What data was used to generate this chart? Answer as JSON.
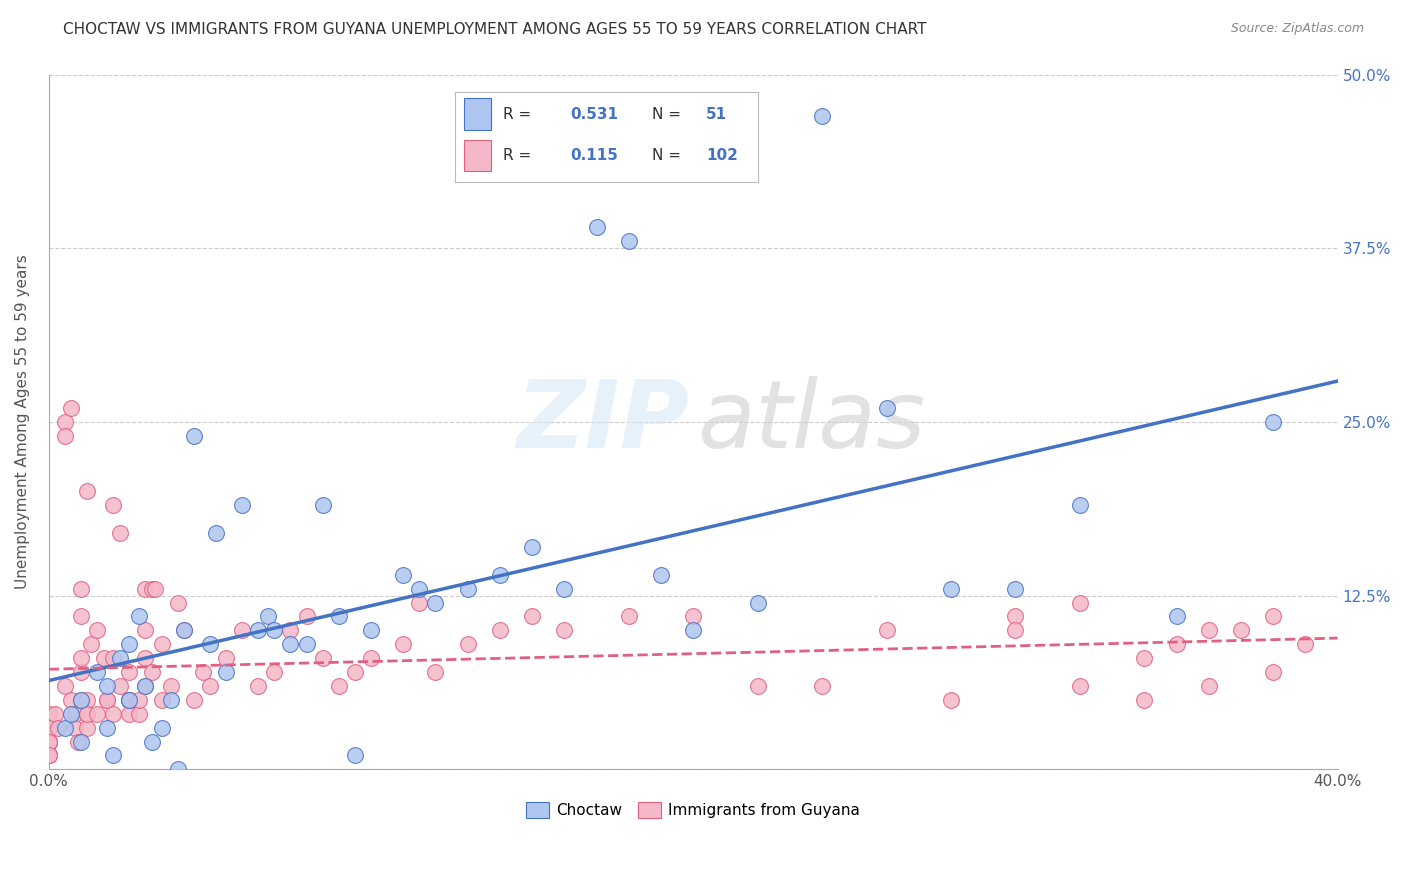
{
  "title": "CHOCTAW VS IMMIGRANTS FROM GUYANA UNEMPLOYMENT AMONG AGES 55 TO 59 YEARS CORRELATION CHART",
  "source": "Source: ZipAtlas.com",
  "ylabel": "Unemployment Among Ages 55 to 59 years",
  "xlim": [
    0.0,
    0.4
  ],
  "ylim": [
    0.0,
    0.5
  ],
  "yticks": [
    0.0,
    0.125,
    0.25,
    0.375,
    0.5
  ],
  "yticklabels_right": [
    "",
    "12.5%",
    "25.0%",
    "37.5%",
    "50.0%"
  ],
  "grid_color": "#cccccc",
  "background_color": "#ffffff",
  "choctaw_color": "#aec6f0",
  "guyana_color": "#f4b8c8",
  "choctaw_line_color": "#4472c4",
  "guyana_line_color": "#e06080",
  "choctaw_R": 0.531,
  "choctaw_N": 51,
  "guyana_R": 0.115,
  "guyana_N": 102,
  "choctaw_x": [
    0.005,
    0.007,
    0.01,
    0.01,
    0.015,
    0.018,
    0.018,
    0.02,
    0.022,
    0.025,
    0.025,
    0.028,
    0.03,
    0.032,
    0.035,
    0.038,
    0.04,
    0.042,
    0.045,
    0.05,
    0.052,
    0.055,
    0.06,
    0.065,
    0.068,
    0.07,
    0.075,
    0.08,
    0.085,
    0.09,
    0.095,
    0.1,
    0.11,
    0.115,
    0.12,
    0.13,
    0.14,
    0.15,
    0.16,
    0.17,
    0.18,
    0.19,
    0.2,
    0.22,
    0.24,
    0.26,
    0.28,
    0.3,
    0.32,
    0.35,
    0.38
  ],
  "choctaw_y": [
    0.03,
    0.04,
    0.02,
    0.05,
    0.07,
    0.06,
    0.03,
    0.01,
    0.08,
    0.09,
    0.05,
    0.11,
    0.06,
    0.02,
    0.03,
    0.05,
    0.0,
    0.1,
    0.24,
    0.09,
    0.17,
    0.07,
    0.19,
    0.1,
    0.11,
    0.1,
    0.09,
    0.09,
    0.19,
    0.11,
    0.01,
    0.1,
    0.14,
    0.13,
    0.12,
    0.13,
    0.14,
    0.16,
    0.13,
    0.39,
    0.38,
    0.14,
    0.1,
    0.12,
    0.47,
    0.26,
    0.13,
    0.13,
    0.19,
    0.11,
    0.25
  ],
  "guyana_x": [
    0.0,
    0.0,
    0.0,
    0.0,
    0.0,
    0.0,
    0.0,
    0.0,
    0.0,
    0.0,
    0.0,
    0.0,
    0.0,
    0.002,
    0.003,
    0.005,
    0.005,
    0.005,
    0.007,
    0.007,
    0.008,
    0.008,
    0.009,
    0.01,
    0.01,
    0.01,
    0.01,
    0.01,
    0.012,
    0.012,
    0.012,
    0.012,
    0.012,
    0.013,
    0.015,
    0.015,
    0.017,
    0.018,
    0.018,
    0.02,
    0.02,
    0.02,
    0.022,
    0.022,
    0.025,
    0.025,
    0.025,
    0.025,
    0.025,
    0.028,
    0.028,
    0.03,
    0.03,
    0.03,
    0.03,
    0.032,
    0.032,
    0.033,
    0.035,
    0.035,
    0.038,
    0.04,
    0.042,
    0.045,
    0.048,
    0.05,
    0.055,
    0.06,
    0.065,
    0.07,
    0.075,
    0.08,
    0.085,
    0.09,
    0.095,
    0.1,
    0.11,
    0.115,
    0.12,
    0.13,
    0.14,
    0.15,
    0.16,
    0.18,
    0.2,
    0.22,
    0.24,
    0.26,
    0.28,
    0.3,
    0.32,
    0.34,
    0.35,
    0.36,
    0.37,
    0.38,
    0.39,
    0.3,
    0.32,
    0.34,
    0.36,
    0.38
  ],
  "guyana_y": [
    0.02,
    0.03,
    0.04,
    0.02,
    0.03,
    0.01,
    0.03,
    0.02,
    0.01,
    0.02,
    0.03,
    0.02,
    0.01,
    0.04,
    0.03,
    0.06,
    0.25,
    0.24,
    0.26,
    0.05,
    0.04,
    0.03,
    0.02,
    0.07,
    0.08,
    0.05,
    0.11,
    0.13,
    0.04,
    0.03,
    0.05,
    0.2,
    0.04,
    0.09,
    0.1,
    0.04,
    0.08,
    0.05,
    0.05,
    0.19,
    0.08,
    0.04,
    0.06,
    0.17,
    0.05,
    0.05,
    0.04,
    0.05,
    0.07,
    0.04,
    0.05,
    0.1,
    0.08,
    0.06,
    0.13,
    0.07,
    0.13,
    0.13,
    0.05,
    0.09,
    0.06,
    0.12,
    0.1,
    0.05,
    0.07,
    0.06,
    0.08,
    0.1,
    0.06,
    0.07,
    0.1,
    0.11,
    0.08,
    0.06,
    0.07,
    0.08,
    0.09,
    0.12,
    0.07,
    0.09,
    0.1,
    0.11,
    0.1,
    0.11,
    0.11,
    0.06,
    0.06,
    0.1,
    0.05,
    0.11,
    0.12,
    0.08,
    0.09,
    0.1,
    0.1,
    0.11,
    0.09,
    0.1,
    0.06,
    0.05,
    0.06,
    0.07
  ]
}
